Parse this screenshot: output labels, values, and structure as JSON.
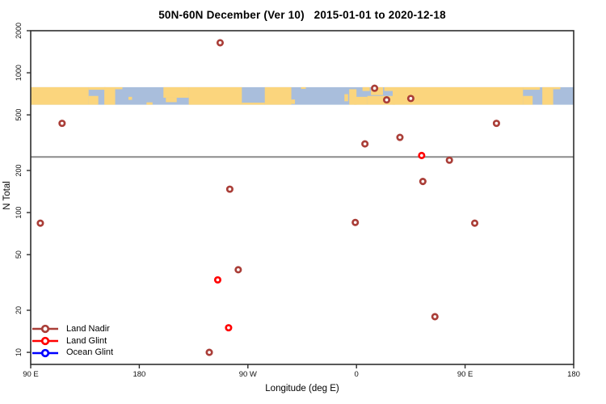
{
  "title": "50N-60N December (Ver 10)   2015-01-01 to 2020-12-18",
  "axes": {
    "xlabel": "Longitude (deg E)",
    "ylabel": "N Total",
    "x_ticks": [
      {
        "pos": 90,
        "label": "90 E"
      },
      {
        "pos": 180,
        "label": "180"
      },
      {
        "pos": 270,
        "label": "90 W"
      },
      {
        "pos": 360,
        "label": "0"
      },
      {
        "pos": 450,
        "label": "90 E"
      },
      {
        "pos": 540,
        "label": "180"
      }
    ],
    "y_ticks": [
      2000,
      1000,
      500,
      200,
      100,
      50,
      20,
      10
    ]
  },
  "legend": {
    "items": [
      {
        "label": "Land Nadir",
        "color": "#AA3E38"
      },
      {
        "label": "Land Glint",
        "color": "#FF0000"
      },
      {
        "label": "Ocean Glint",
        "color": "#0000FF"
      }
    ]
  },
  "chart_data": {
    "type": "scatter",
    "title": "50N-60N December (Ver 10)   2015-01-01 to 2020-12-18",
    "xlabel": "Longitude (deg E)",
    "ylabel": "N Total",
    "x_axis": {
      "type": "linear",
      "domain": [
        90,
        540
      ],
      "note": "longitude wraps eastward: 90E -> 180 -> 90W -> 0 -> 90E -> 180; points with lon 90E-180E are drawn twice"
    },
    "y_axis": {
      "type": "log",
      "domain": [
        8.2,
        2000
      ],
      "grid": false
    },
    "reference_line_n": 250,
    "reference_line_color": "#8C8C8C",
    "frame_color": "#2E2E2E",
    "series": [
      {
        "name": "Land Nadir",
        "color": "#AA3E38",
        "points": [
          {
            "lon_plot": 247,
            "lon": -113,
            "n": 1640
          },
          {
            "lon_plot": 116,
            "lon": 116,
            "n": 435
          },
          {
            "lon_plot": 476,
            "lon": 116,
            "n": 435
          },
          {
            "lon_plot": 375,
            "lon": 15,
            "n": 775
          },
          {
            "lon_plot": 385,
            "lon": 25,
            "n": 640
          },
          {
            "lon_plot": 405,
            "lon": 45,
            "n": 655
          },
          {
            "lon_plot": 396,
            "lon": 36,
            "n": 345
          },
          {
            "lon_plot": 367,
            "lon": 7,
            "n": 310
          },
          {
            "lon_plot": 437,
            "lon": 77,
            "n": 237
          },
          {
            "lon_plot": 415,
            "lon": 55,
            "n": 167
          },
          {
            "lon_plot": 255,
            "lon": -105,
            "n": 147
          },
          {
            "lon_plot": 98,
            "lon": 98,
            "n": 84
          },
          {
            "lon_plot": 458,
            "lon": 98,
            "n": 84
          },
          {
            "lon_plot": 359,
            "lon": -1,
            "n": 85
          },
          {
            "lon_plot": 262,
            "lon": -98,
            "n": 39
          },
          {
            "lon_plot": 425,
            "lon": 65,
            "n": 18
          },
          {
            "lon_plot": 238,
            "lon": -122,
            "n": 10
          }
        ]
      },
      {
        "name": "Land Glint",
        "color": "#FF0000",
        "points": [
          {
            "lon_plot": 414,
            "lon": 54,
            "n": 256
          },
          {
            "lon_plot": 245,
            "lon": -115,
            "n": 33
          },
          {
            "lon_plot": 254,
            "lon": -106,
            "n": 15
          }
        ]
      },
      {
        "name": "Ocean Glint",
        "color": "#0000FF",
        "points": []
      }
    ],
    "map_band": {
      "n_range": [
        590,
        790
      ],
      "ocean_color": "#A9BEDC",
      "land_color": "#FBD57D",
      "land_patches": [
        [
          90,
          138,
          0,
          1
        ],
        [
          138,
          146,
          0.5,
          1
        ],
        [
          138,
          152,
          0,
          0.15
        ],
        [
          151,
          160,
          0,
          1
        ],
        [
          160,
          166,
          0,
          0.12
        ],
        [
          171,
          174,
          0.55,
          0.72
        ],
        [
          186,
          191,
          0.86,
          1
        ],
        [
          200,
          221,
          0,
          0.6
        ],
        [
          202,
          211,
          0.6,
          0.85
        ],
        [
          221,
          265,
          0,
          1
        ],
        [
          265,
          284,
          0.88,
          1
        ],
        [
          284,
          306,
          0,
          1
        ],
        [
          306,
          309,
          0.7,
          0.95
        ],
        [
          314,
          318,
          0,
          0.1
        ],
        [
          350,
          353,
          0.4,
          0.8
        ],
        [
          354,
          360,
          0.12,
          1
        ],
        [
          358,
          369,
          0.55,
          1
        ],
        [
          365,
          371,
          0,
          0.22
        ],
        [
          372,
          382,
          0,
          0.45
        ],
        [
          383,
          390,
          0,
          0.22
        ],
        [
          369,
          392,
          0.5,
          1
        ],
        [
          390,
          498,
          0,
          1
        ],
        [
          498,
          506,
          0.5,
          1
        ],
        [
          498,
          512,
          0,
          0.15
        ],
        [
          514,
          523,
          0,
          1
        ],
        [
          523,
          529,
          0,
          0.12
        ]
      ]
    }
  }
}
